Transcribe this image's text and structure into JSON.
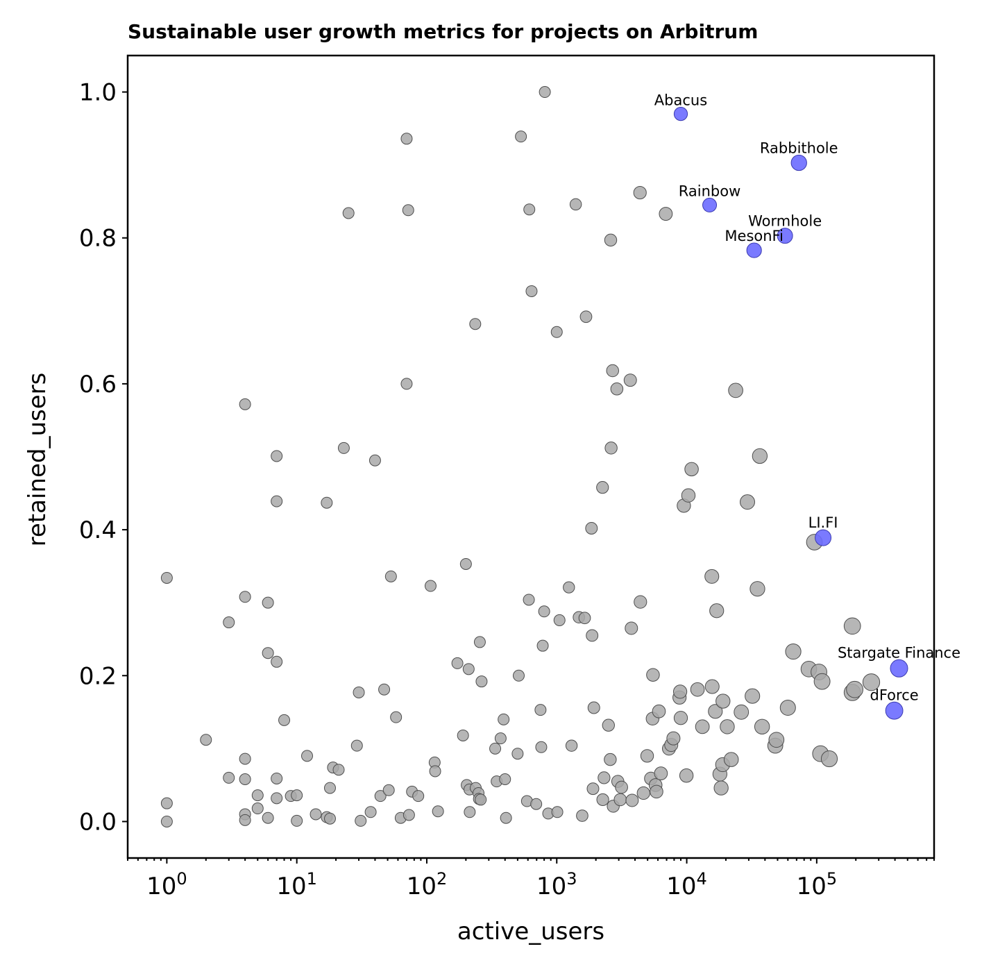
{
  "chart_data": {
    "type": "scatter",
    "title": "Sustainable user growth metrics for projects on Arbitrum",
    "xlabel": "active_users",
    "ylabel": "retained_users",
    "xscale": "log",
    "xlim": [
      0.5,
      800000
    ],
    "ylim": [
      -0.05,
      1.05
    ],
    "xticks": [
      {
        "base": "10",
        "exp": "0",
        "value": 1
      },
      {
        "base": "10",
        "exp": "1",
        "value": 10
      },
      {
        "base": "10",
        "exp": "2",
        "value": 100
      },
      {
        "base": "10",
        "exp": "3",
        "value": 1000
      },
      {
        "base": "10",
        "exp": "4",
        "value": 10000
      },
      {
        "base": "10",
        "exp": "5",
        "value": 100000
      }
    ],
    "yticks": [
      {
        "label": "0.0",
        "value": 0.0
      },
      {
        "label": "0.2",
        "value": 0.2
      },
      {
        "label": "0.4",
        "value": 0.4
      },
      {
        "label": "0.6",
        "value": 0.6
      },
      {
        "label": "0.8",
        "value": 0.8
      },
      {
        "label": "1.0",
        "value": 1.0
      }
    ],
    "highlight_color": "#6b6bff",
    "base_color": "#a9a9a9",
    "highlighted": [
      {
        "name": "Abacus",
        "x": 9000,
        "y": 0.97
      },
      {
        "name": "Rabbithole",
        "x": 73000,
        "y": 0.903
      },
      {
        "name": "Rainbow",
        "x": 15000,
        "y": 0.845
      },
      {
        "name": "Wormhole",
        "x": 57000,
        "y": 0.803
      },
      {
        "name": "MesonFi",
        "x": 33000,
        "y": 0.783
      },
      {
        "name": "LI.FI",
        "x": 112000,
        "y": 0.389
      },
      {
        "name": "Stargate Finance",
        "x": 430000,
        "y": 0.21
      },
      {
        "name": "dForce",
        "x": 395000,
        "y": 0.152
      }
    ],
    "points": [
      [
        1,
        0.334
      ],
      [
        1,
        0.025
      ],
      [
        1,
        0.0
      ],
      [
        2,
        0.112
      ],
      [
        3,
        0.273
      ],
      [
        3,
        0.06
      ],
      [
        4,
        0.572
      ],
      [
        4,
        0.308
      ],
      [
        4,
        0.086
      ],
      [
        4,
        0.058
      ],
      [
        4,
        0.01
      ],
      [
        4,
        0.002
      ],
      [
        5,
        0.036
      ],
      [
        5,
        0.018
      ],
      [
        6,
        0.3
      ],
      [
        6,
        0.231
      ],
      [
        6,
        0.005
      ],
      [
        7,
        0.501
      ],
      [
        7,
        0.439
      ],
      [
        7,
        0.219
      ],
      [
        7,
        0.059
      ],
      [
        7,
        0.032
      ],
      [
        8,
        0.139
      ],
      [
        9,
        0.035
      ],
      [
        10,
        0.036
      ],
      [
        10,
        0.001
      ],
      [
        12,
        0.09
      ],
      [
        14,
        0.01
      ],
      [
        17,
        0.437
      ],
      [
        17,
        0.006
      ],
      [
        18,
        0.046
      ],
      [
        18,
        0.004
      ],
      [
        19,
        0.074
      ],
      [
        21,
        0.071
      ],
      [
        23,
        0.512
      ],
      [
        25,
        0.834
      ],
      [
        29,
        0.104
      ],
      [
        30,
        0.177
      ],
      [
        31,
        0.001
      ],
      [
        37,
        0.013
      ],
      [
        40,
        0.495
      ],
      [
        44,
        0.035
      ],
      [
        47,
        0.181
      ],
      [
        51,
        0.043
      ],
      [
        53,
        0.336
      ],
      [
        58,
        0.143
      ],
      [
        63,
        0.005
      ],
      [
        70,
        0.936
      ],
      [
        70,
        0.6
      ],
      [
        72,
        0.838
      ],
      [
        73,
        0.009
      ],
      [
        77,
        0.041
      ],
      [
        86,
        0.035
      ],
      [
        107,
        0.323
      ],
      [
        115,
        0.081
      ],
      [
        116,
        0.069
      ],
      [
        122,
        0.014
      ],
      [
        172,
        0.217
      ],
      [
        190,
        0.118
      ],
      [
        200,
        0.353
      ],
      [
        203,
        0.05
      ],
      [
        210,
        0.209
      ],
      [
        213,
        0.044
      ],
      [
        214,
        0.013
      ],
      [
        236,
        0.682
      ],
      [
        238,
        0.046
      ],
      [
        250,
        0.039
      ],
      [
        252,
        0.031
      ],
      [
        256,
        0.246
      ],
      [
        260,
        0.03
      ],
      [
        264,
        0.192
      ],
      [
        336,
        0.1
      ],
      [
        345,
        0.055
      ],
      [
        370,
        0.114
      ],
      [
        390,
        0.14
      ],
      [
        400,
        0.058
      ],
      [
        407,
        0.005
      ],
      [
        500,
        0.093
      ],
      [
        510,
        0.2
      ],
      [
        530,
        0.939
      ],
      [
        590,
        0.028
      ],
      [
        610,
        0.304
      ],
      [
        615,
        0.839
      ],
      [
        640,
        0.727
      ],
      [
        695,
        0.024
      ],
      [
        750,
        0.153
      ],
      [
        760,
        0.102
      ],
      [
        780,
        0.241
      ],
      [
        800,
        0.288
      ],
      [
        810,
        1.0
      ],
      [
        860,
        0.011
      ],
      [
        1000,
        0.671
      ],
      [
        1010,
        0.013
      ],
      [
        1050,
        0.276
      ],
      [
        1240,
        0.321
      ],
      [
        1300,
        0.104
      ],
      [
        1400,
        0.846
      ],
      [
        1480,
        0.28
      ],
      [
        1570,
        0.008
      ],
      [
        1640,
        0.279
      ],
      [
        1680,
        0.692
      ],
      [
        1850,
        0.402
      ],
      [
        1870,
        0.255
      ],
      [
        1900,
        0.045
      ],
      [
        1930,
        0.156
      ],
      [
        2250,
        0.458
      ],
      [
        2260,
        0.03
      ],
      [
        2310,
        0.06
      ],
      [
        2500,
        0.132
      ],
      [
        2580,
        0.085
      ],
      [
        2600,
        0.797
      ],
      [
        2620,
        0.512
      ],
      [
        2690,
        0.618
      ],
      [
        2720,
        0.021
      ],
      [
        2900,
        0.593
      ],
      [
        2950,
        0.055
      ],
      [
        3080,
        0.03
      ],
      [
        3150,
        0.047
      ],
      [
        3680,
        0.605
      ],
      [
        3750,
        0.265
      ],
      [
        3800,
        0.029
      ],
      [
        4370,
        0.862
      ],
      [
        4400,
        0.301
      ],
      [
        4650,
        0.039
      ],
      [
        4960,
        0.09
      ],
      [
        5300,
        0.059
      ],
      [
        5460,
        0.141
      ],
      [
        5500,
        0.201
      ],
      [
        5760,
        0.05
      ],
      [
        5850,
        0.041
      ],
      [
        6110,
        0.151
      ],
      [
        6330,
        0.066
      ],
      [
        6900,
        0.833
      ],
      [
        7300,
        0.1
      ],
      [
        7600,
        0.105
      ],
      [
        7900,
        0.114
      ],
      [
        8800,
        0.17
      ],
      [
        8900,
        0.178
      ],
      [
        9000,
        0.142
      ],
      [
        9500,
        0.433
      ],
      [
        9950,
        0.063
      ],
      [
        10300,
        0.447
      ],
      [
        10900,
        0.483
      ],
      [
        12100,
        0.181
      ],
      [
        13200,
        0.13
      ],
      [
        15600,
        0.336
      ],
      [
        15700,
        0.185
      ],
      [
        16600,
        0.151
      ],
      [
        17000,
        0.289
      ],
      [
        18000,
        0.065
      ],
      [
        18400,
        0.046
      ],
      [
        18900,
        0.078
      ],
      [
        19000,
        0.165
      ],
      [
        20500,
        0.13
      ],
      [
        22000,
        0.085
      ],
      [
        23800,
        0.591
      ],
      [
        26300,
        0.15
      ],
      [
        29300,
        0.438
      ],
      [
        32000,
        0.172
      ],
      [
        35000,
        0.319
      ],
      [
        36500,
        0.501
      ],
      [
        38000,
        0.13
      ],
      [
        48000,
        0.104
      ],
      [
        49000,
        0.112
      ],
      [
        60000,
        0.156
      ],
      [
        66000,
        0.233
      ],
      [
        87000,
        0.209
      ],
      [
        96000,
        0.383
      ],
      [
        104000,
        0.205
      ],
      [
        107000,
        0.093
      ],
      [
        110000,
        0.192
      ],
      [
        125000,
        0.086
      ],
      [
        188000,
        0.268
      ],
      [
        188000,
        0.177
      ],
      [
        196000,
        0.181
      ],
      [
        263000,
        0.191
      ]
    ]
  }
}
